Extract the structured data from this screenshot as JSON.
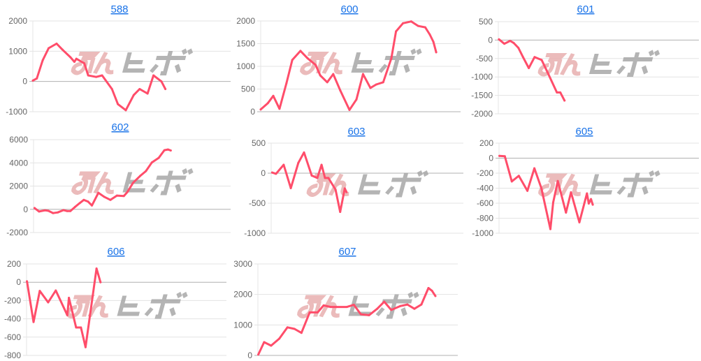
{
  "watermark": {
    "text": "みんヒボ",
    "color_left": "#e8b0b0",
    "color_right": "#a8a8a8"
  },
  "line_color": "#ff4d6a",
  "chart_data": [
    {
      "type": "line",
      "title": "588",
      "ylim": [
        -1000,
        2000
      ],
      "yticks": [
        -1000,
        0,
        1000,
        2000
      ],
      "yticklabels": [
        "-1000",
        "0",
        "1000",
        "2000"
      ],
      "grid": true,
      "points": [
        [
          0,
          30
        ],
        [
          2,
          100
        ],
        [
          5,
          700
        ],
        [
          8,
          1100
        ],
        [
          12,
          1250
        ],
        [
          15,
          1050
        ],
        [
          19,
          800
        ],
        [
          21,
          650
        ],
        [
          22,
          750
        ],
        [
          26,
          600
        ],
        [
          28,
          200
        ],
        [
          32,
          150
        ],
        [
          35,
          200
        ],
        [
          40,
          -250
        ],
        [
          43,
          -750
        ],
        [
          47,
          -950
        ],
        [
          51,
          -450
        ],
        [
          54,
          -250
        ],
        [
          58,
          -400
        ],
        [
          61,
          200
        ],
        [
          63,
          100
        ],
        [
          65,
          0
        ],
        [
          67,
          -250
        ]
      ]
    },
    {
      "type": "line",
      "title": "600",
      "ylim": [
        0,
        2000
      ],
      "yticks": [
        0,
        500,
        1000,
        1500,
        2000
      ],
      "yticklabels": [
        "0",
        "500",
        "1000",
        "1500",
        "2000"
      ],
      "grid": true,
      "points": [
        [
          0,
          50
        ],
        [
          3.6,
          190
        ],
        [
          6.3,
          350
        ],
        [
          9.4,
          65
        ],
        [
          12.9,
          630
        ],
        [
          15.8,
          1140
        ],
        [
          19.9,
          1340
        ],
        [
          23.4,
          1180
        ],
        [
          27.5,
          1030
        ],
        [
          29.8,
          800
        ],
        [
          33.3,
          650
        ],
        [
          36.3,
          830
        ],
        [
          39.8,
          470
        ],
        [
          44.4,
          40
        ],
        [
          47.9,
          270
        ],
        [
          51.2,
          830
        ],
        [
          54.9,
          525
        ],
        [
          57.8,
          600
        ],
        [
          61.3,
          650
        ],
        [
          65.4,
          1180
        ],
        [
          67.7,
          1770
        ],
        [
          71.2,
          1950
        ],
        [
          75.3,
          1990
        ],
        [
          78.8,
          1890
        ],
        [
          82.3,
          1860
        ],
        [
          84.6,
          1700
        ],
        [
          86.4,
          1540
        ],
        [
          87.8,
          1310
        ]
      ]
    },
    {
      "type": "line",
      "title": "601",
      "ylim": [
        -2000,
        500
      ],
      "yticks": [
        -2000,
        -1500,
        -1000,
        -500,
        0,
        500
      ],
      "yticklabels": [
        "-2000",
        "-1500",
        "-1000",
        "-500",
        "0",
        "500"
      ],
      "grid": true,
      "points": [
        [
          0.3,
          20
        ],
        [
          3,
          -100
        ],
        [
          5.9,
          -20
        ],
        [
          7.7,
          -80
        ],
        [
          10,
          -210
        ],
        [
          12.3,
          -460
        ],
        [
          15.2,
          -760
        ],
        [
          18.1,
          -460
        ],
        [
          21.6,
          -540
        ],
        [
          24.5,
          -870
        ],
        [
          29.2,
          -1420
        ],
        [
          30.9,
          -1420
        ],
        [
          33,
          -1640
        ]
      ]
    },
    {
      "type": "line",
      "title": "602",
      "ylim": [
        -2000,
        6000
      ],
      "yticks": [
        -2000,
        0,
        2000,
        4000,
        6000
      ],
      "yticklabels": [
        "-2000",
        "0",
        "2000",
        "4000",
        "6000"
      ],
      "grid": true,
      "points": [
        [
          0.5,
          110
        ],
        [
          2.8,
          -190
        ],
        [
          5.8,
          -90
        ],
        [
          7.5,
          -130
        ],
        [
          9.9,
          -330
        ],
        [
          12.3,
          -270
        ],
        [
          15.2,
          -70
        ],
        [
          17,
          -150
        ],
        [
          18.7,
          -150
        ],
        [
          21.1,
          210
        ],
        [
          23.4,
          530
        ],
        [
          25.5,
          810
        ],
        [
          27.6,
          670
        ],
        [
          29.6,
          330
        ],
        [
          32.9,
          1420
        ],
        [
          35.8,
          1080
        ],
        [
          39,
          810
        ],
        [
          42.3,
          1180
        ],
        [
          45.8,
          1140
        ],
        [
          47.6,
          1480
        ],
        [
          50.5,
          2280
        ],
        [
          54.1,
          2880
        ],
        [
          57,
          3290
        ],
        [
          60,
          4030
        ],
        [
          63.5,
          4430
        ],
        [
          66.4,
          5090
        ],
        [
          68.2,
          5150
        ],
        [
          69.6,
          5070
        ]
      ]
    },
    {
      "type": "line",
      "title": "603",
      "ylim": [
        -1000,
        500
      ],
      "yticks": [
        -1000,
        -500,
        0,
        500
      ],
      "yticklabels": [
        "-1000",
        "-500",
        "0",
        "500"
      ],
      "grid": true,
      "points": [
        [
          0.5,
          10
        ],
        [
          2.5,
          -10
        ],
        [
          6.5,
          140
        ],
        [
          10.2,
          -250
        ],
        [
          14.1,
          170
        ],
        [
          17.1,
          345
        ],
        [
          21.1,
          -40
        ],
        [
          24,
          -80
        ],
        [
          26.2,
          140
        ],
        [
          28,
          -80
        ],
        [
          29.8,
          -80
        ],
        [
          33.5,
          -275
        ],
        [
          35.9,
          -645
        ],
        [
          38.3,
          -255
        ],
        [
          39.2,
          -315
        ]
      ]
    },
    {
      "type": "line",
      "title": "605",
      "ylim": [
        -1000,
        200
      ],
      "yticks": [
        -1000,
        -800,
        -600,
        -400,
        -200,
        0,
        200
      ],
      "yticklabels": [
        "-1000",
        "-800",
        "-600",
        "-400",
        "-200",
        "0",
        "200"
      ],
      "grid": true,
      "points": [
        [
          0.2,
          30
        ],
        [
          2.9,
          25
        ],
        [
          6.4,
          -310
        ],
        [
          9.9,
          -235
        ],
        [
          14.2,
          -435
        ],
        [
          17.7,
          -135
        ],
        [
          21.2,
          -400
        ],
        [
          25.7,
          -945
        ],
        [
          27.1,
          -590
        ],
        [
          29.4,
          -305
        ],
        [
          33.5,
          -725
        ],
        [
          36,
          -455
        ],
        [
          40.2,
          -855
        ],
        [
          44,
          -470
        ],
        [
          44.9,
          -605
        ],
        [
          46,
          -545
        ],
        [
          46.9,
          -620
        ]
      ]
    },
    {
      "type": "line",
      "title": "606",
      "ylim": [
        -800,
        200
      ],
      "yticks": [
        -800,
        -600,
        -400,
        -200,
        0,
        200
      ],
      "yticklabels": [
        "-800",
        "-600",
        "-400",
        "-200",
        "0",
        "200"
      ],
      "grid": true,
      "points": [
        [
          0.2,
          10
        ],
        [
          3.5,
          -435
        ],
        [
          6.6,
          -95
        ],
        [
          10.8,
          -220
        ],
        [
          14.6,
          -90
        ],
        [
          20.4,
          -360
        ],
        [
          21.2,
          -170
        ],
        [
          24.8,
          -495
        ],
        [
          27.2,
          -495
        ],
        [
          29.5,
          -710
        ],
        [
          35,
          150
        ],
        [
          37,
          0
        ]
      ]
    },
    {
      "type": "line",
      "title": "607",
      "ylim": [
        0,
        3000
      ],
      "yticks": [
        0,
        1000,
        2000,
        3000
      ],
      "yticklabels": [
        "0",
        "1000",
        "2000",
        "3000"
      ],
      "grid": true,
      "points": [
        [
          0.2,
          30
        ],
        [
          3.1,
          435
        ],
        [
          6.6,
          320
        ],
        [
          10.7,
          550
        ],
        [
          14.8,
          920
        ],
        [
          18.3,
          870
        ],
        [
          21.8,
          740
        ],
        [
          25.9,
          1410
        ],
        [
          29.9,
          1410
        ],
        [
          32.9,
          1640
        ],
        [
          36.4,
          1590
        ],
        [
          44.5,
          1590
        ],
        [
          48,
          1660
        ],
        [
          51.5,
          1350
        ],
        [
          55.6,
          1320
        ],
        [
          59.7,
          1530
        ],
        [
          63.2,
          1760
        ],
        [
          66.7,
          1490
        ],
        [
          71.3,
          1620
        ],
        [
          74.8,
          1670
        ],
        [
          78.3,
          1530
        ],
        [
          81.8,
          1670
        ],
        [
          85.3,
          2210
        ],
        [
          87.1,
          2120
        ],
        [
          88.8,
          1950
        ]
      ]
    }
  ]
}
